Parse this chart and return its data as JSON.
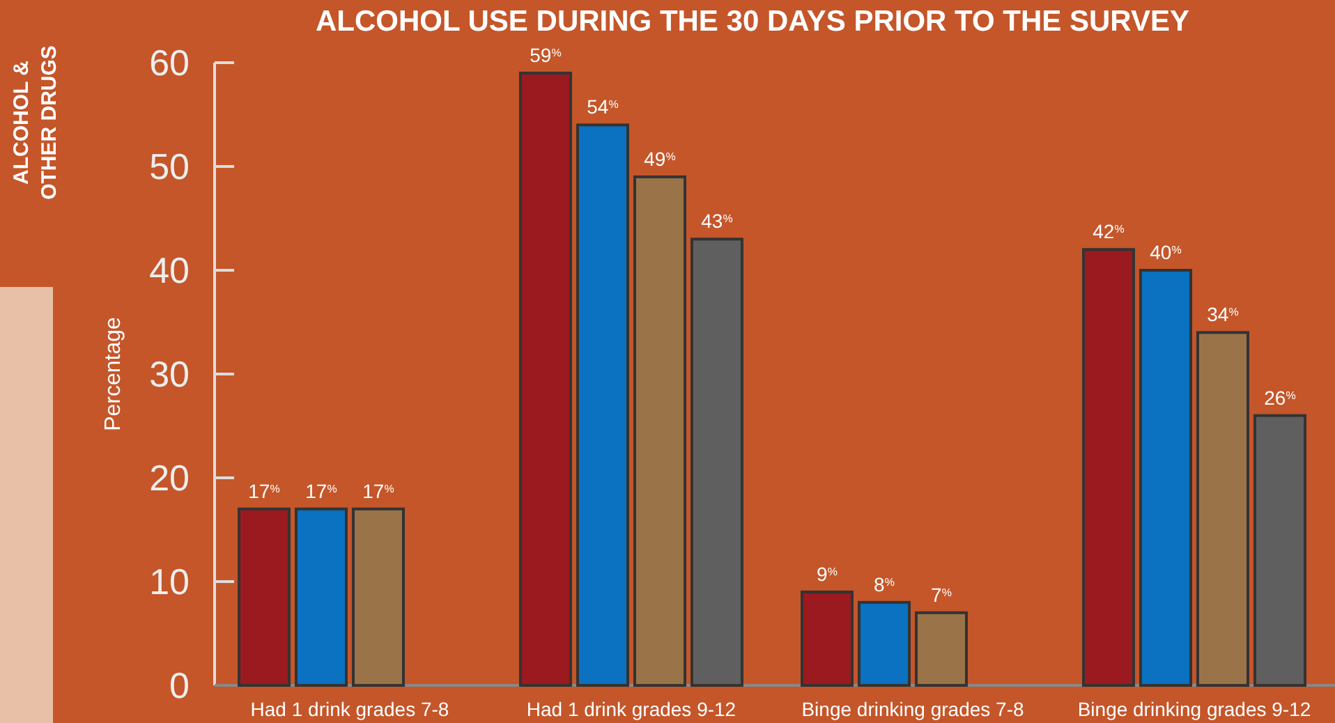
{
  "chart_data": {
    "type": "bar",
    "title": "ALCOHOL USE DURING THE 30 DAYS PRIOR TO THE SURVEY",
    "ylabel": "Percentage",
    "annotations": [
      "ALCOHOL & OTHER DRUGS"
    ],
    "categories": [
      "Had 1 drink grades 7-8",
      "Had 1 drink grades 9-12",
      "Binge drinking grades 7-8",
      "Binge drinking grades 9-12"
    ],
    "series": [
      {
        "color": "#9a1a20",
        "values": [
          17,
          59,
          9,
          42
        ],
        "value_labels": [
          "17$^{%}$",
          "59$^{%}$",
          "9$^{%}$",
          "42$^{%}$"
        ]
      },
      {
        "color": "#0a72c0",
        "values": [
          17,
          54,
          8,
          40
        ],
        "value_labels": [
          "17$^{%}$",
          "54$^{%}$",
          "8$^{%}$",
          "40$^{%}$"
        ]
      },
      {
        "color": "#9a7448",
        "values": [
          17,
          49,
          7,
          34
        ],
        "value_labels": [
          "17$^{%}$",
          "49$^{%}$",
          "7$^{%}$",
          "34$^{%}$"
        ]
      },
      {
        "color": "#5f5f5f",
        "values": [
          null,
          43,
          null,
          26
        ],
        "value_labels": [
          null,
          "43$^{%}$",
          null,
          "26$^{%}$"
        ]
      }
    ],
    "ylim": [
      0,
      60
    ],
    "yticks": [
      0,
      10,
      20,
      30,
      40,
      50,
      60
    ],
    "grid": false
  }
}
